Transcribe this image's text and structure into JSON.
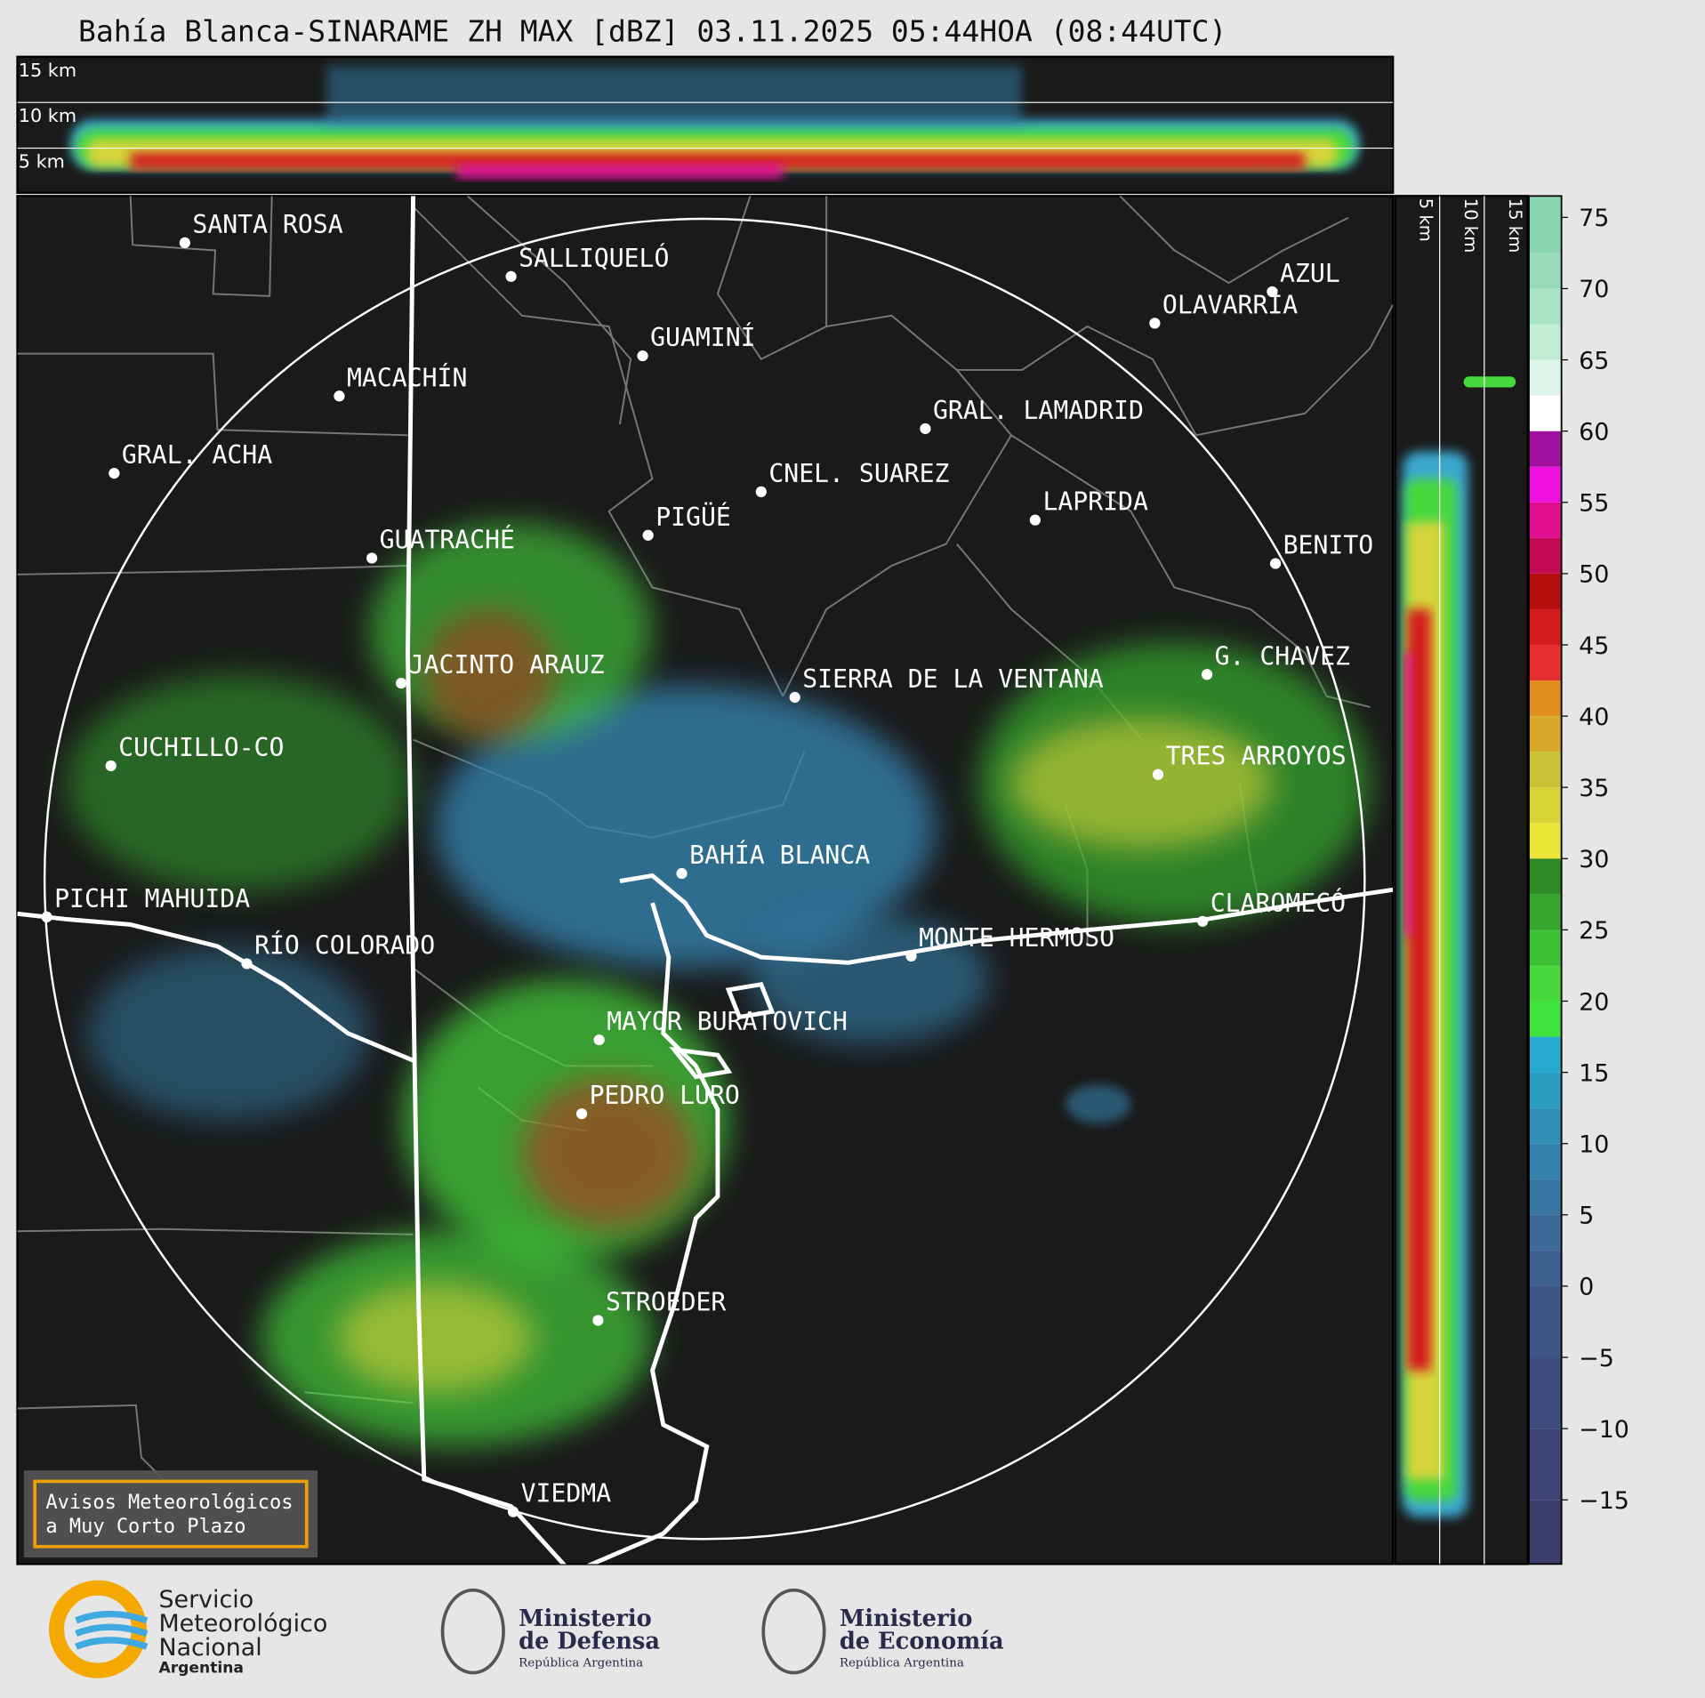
{
  "title": "Bahía Blanca-SINARAME ZH MAX [dBZ] 03.11.2025 05:44HOA (08:44UTC)",
  "cities": [
    "SANTA ROSA",
    "SALLIQUELÓ",
    "GUAMINÍ",
    "MACACHÍN",
    "GRAL. ACHA",
    "AZUL",
    "OLAVARRÍA",
    "GRAL. LAMADRID",
    "CNEL. SUAREZ",
    "LAPRIDA",
    "PIGÜÉ",
    "GUATRACHÉ",
    "BENITO",
    "JACINTO ARAUZ",
    "SIERRA DE LA VENTANA",
    "G. CHAVEZ",
    "CUCHILLO-CO",
    "TRES ARROYOS",
    "BAHÍA BLANCA",
    "PICHI MAHUIDA",
    "CLAROMECÓ",
    "RÍO COLORADO",
    "MONTE HERMOSO",
    "MAYOR BURATOVICH",
    "PEDRO LURO",
    "STROEDER",
    "VIEDMA"
  ],
  "top_panel": {
    "heights": [
      "15 km",
      "10 km",
      "5 km"
    ]
  },
  "side_panel": {
    "heights": [
      "5 km",
      "10 km",
      "15 km"
    ]
  },
  "colorbar": {
    "range": [
      -19.5,
      76.5
    ],
    "ticks": [
      75,
      70,
      65,
      60,
      55,
      50,
      45,
      40,
      35,
      30,
      25,
      20,
      15,
      10,
      5,
      0,
      {
        "value": -5,
        "label": "−5"
      },
      {
        "value": -10,
        "label": "−10"
      },
      {
        "value": -15,
        "label": "−15"
      }
    ],
    "bands": [
      {
        "from": -19.5,
        "color": "#3b3d6b"
      },
      {
        "from": -15,
        "color": "#3d4475"
      },
      {
        "from": -10,
        "color": "#3e4c80"
      },
      {
        "from": -5,
        "color": "#3f5588"
      },
      {
        "from": 0,
        "color": "#3f5f91"
      },
      {
        "from": 2.5,
        "color": "#3d6a9a"
      },
      {
        "from": 5,
        "color": "#3a76a3"
      },
      {
        "from": 7.5,
        "color": "#3582ad"
      },
      {
        "from": 10,
        "color": "#308fb7"
      },
      {
        "from": 12.5,
        "color": "#2a9cc2"
      },
      {
        "from": 15,
        "color": "#26aacf"
      },
      {
        "from": 17.5,
        "color": "#3de33a"
      },
      {
        "from": 20,
        "color": "#46d83c"
      },
      {
        "from": 22.5,
        "color": "#3cc035"
      },
      {
        "from": 25,
        "color": "#35a52e"
      },
      {
        "from": 27.5,
        "color": "#2e8a27"
      },
      {
        "from": 30,
        "color": "#ebe637"
      },
      {
        "from": 32.5,
        "color": "#d7d43a"
      },
      {
        "from": 35,
        "color": "#c9c237"
      },
      {
        "from": 37.5,
        "color": "#d9aa2a"
      },
      {
        "from": 40,
        "color": "#e08f1f"
      },
      {
        "from": 42.5,
        "color": "#e63030"
      },
      {
        "from": 45,
        "color": "#d31d1d"
      },
      {
        "from": 47.5,
        "color": "#b50e0e"
      },
      {
        "from": 50,
        "color": "#c20a55"
      },
      {
        "from": 52.5,
        "color": "#e01090"
      },
      {
        "from": 55,
        "color": "#ee10dd"
      },
      {
        "from": 57.5,
        "color": "#a0109e"
      },
      {
        "from": 60,
        "color": "#ffffff"
      },
      {
        "from": 62.5,
        "color": "#dff5ea"
      },
      {
        "from": 65,
        "color": "#c3ecd7"
      },
      {
        "from": 67.5,
        "color": "#a9e3c6"
      },
      {
        "from": 70,
        "color": "#97dcba"
      },
      {
        "from": 72.5,
        "color": "#8ad6b1"
      }
    ]
  },
  "notice": [
    "Avisos Meteorológicos",
    "a Muy Corto Plazo"
  ],
  "logos": [
    {
      "lines": [
        "Servicio",
        "Meteorológico",
        "Nacional"
      ],
      "country": "Argentina"
    },
    {
      "lines": [
        "Ministerio",
        "de Defensa"
      ],
      "country": "República Argentina"
    },
    {
      "lines": [
        "Ministerio",
        "de Economía"
      ],
      "country": "República Argentina"
    }
  ]
}
